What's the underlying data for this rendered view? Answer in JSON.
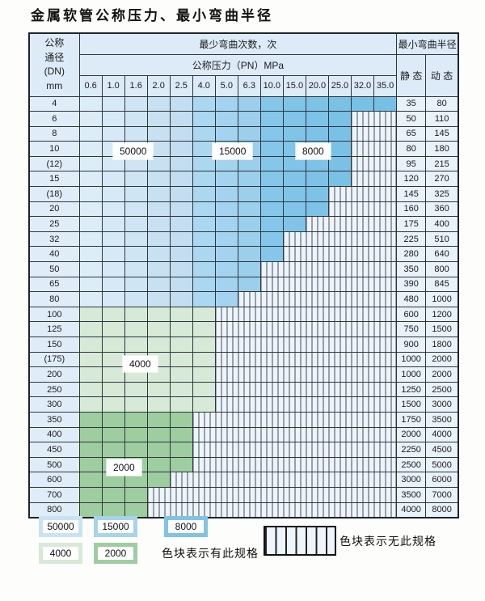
{
  "title": "金属软管公称压力、最小弯曲半径",
  "table": {
    "header": {
      "dn_lines": [
        "公称",
        "通径",
        "(DN)",
        "mm"
      ],
      "bend_cycles_label": "最少弯曲次数，次",
      "pressure_label": "公称压力（PN）MPa",
      "radius_label": "最小弯曲半径",
      "static_label": "静 态",
      "dynamic_label": "动 态",
      "pressure_values": [
        "0.6",
        "1.0",
        "1.6",
        "2.0",
        "2.5",
        "4.0",
        "5.0",
        "6.3",
        "10.0",
        "15.0",
        "20.0",
        "25.0",
        "32.0",
        "35.0"
      ]
    },
    "rows": [
      {
        "dn": "4",
        "colored_cols": 14,
        "max_pn": "35.0",
        "static": "35",
        "dynamic": "80",
        "group": "blue"
      },
      {
        "dn": "6",
        "colored_cols": 12,
        "max_pn": "25.0",
        "static": "50",
        "dynamic": "110",
        "group": "blue"
      },
      {
        "dn": "8",
        "colored_cols": 12,
        "max_pn": "25.0",
        "static": "65",
        "dynamic": "145",
        "group": "blue"
      },
      {
        "dn": "10",
        "colored_cols": 12,
        "max_pn": "25.0",
        "static": "80",
        "dynamic": "180",
        "group": "blue"
      },
      {
        "dn": "(12)",
        "colored_cols": 12,
        "max_pn": "25.0",
        "static": "95",
        "dynamic": "215",
        "group": "blue"
      },
      {
        "dn": "15",
        "colored_cols": 12,
        "max_pn": "25.0",
        "static": "120",
        "dynamic": "270",
        "group": "blue"
      },
      {
        "dn": "(18)",
        "colored_cols": 11,
        "max_pn": "20.0",
        "static": "145",
        "dynamic": "325",
        "group": "blue"
      },
      {
        "dn": "20",
        "colored_cols": 11,
        "max_pn": "20.0",
        "static": "160",
        "dynamic": "360",
        "group": "blue"
      },
      {
        "dn": "25",
        "colored_cols": 10,
        "max_pn": "15.0",
        "static": "175",
        "dynamic": "400",
        "group": "blue"
      },
      {
        "dn": "32",
        "colored_cols": 9,
        "max_pn": "10.0",
        "static": "225",
        "dynamic": "510",
        "group": "blue"
      },
      {
        "dn": "40",
        "colored_cols": 9,
        "max_pn": "10.0",
        "static": "280",
        "dynamic": "640",
        "group": "blue"
      },
      {
        "dn": "50",
        "colored_cols": 8,
        "max_pn": "6.3",
        "static": "350",
        "dynamic": "800",
        "group": "blue"
      },
      {
        "dn": "65",
        "colored_cols": 8,
        "max_pn": "6.3",
        "static": "390",
        "dynamic": "845",
        "group": "blue"
      },
      {
        "dn": "80",
        "colored_cols": 7,
        "max_pn": "5.0",
        "static": "480",
        "dynamic": "1000",
        "group": "blue"
      },
      {
        "dn": "100",
        "colored_cols": 6,
        "max_pn": "4.0",
        "static": "600",
        "dynamic": "1200",
        "group": "green_light"
      },
      {
        "dn": "125",
        "colored_cols": 6,
        "max_pn": "4.0",
        "static": "750",
        "dynamic": "1500",
        "group": "green_light"
      },
      {
        "dn": "150",
        "colored_cols": 6,
        "max_pn": "4.0",
        "static": "900",
        "dynamic": "1800",
        "group": "green_light"
      },
      {
        "dn": "(175)",
        "colored_cols": 6,
        "max_pn": "4.0",
        "static": "1000",
        "dynamic": "2000",
        "group": "green_light"
      },
      {
        "dn": "200",
        "colored_cols": 6,
        "max_pn": "4.0",
        "static": "1000",
        "dynamic": "2000",
        "group": "green_light"
      },
      {
        "dn": "250",
        "colored_cols": 6,
        "max_pn": "4.0",
        "static": "1250",
        "dynamic": "2500",
        "group": "green_light"
      },
      {
        "dn": "300",
        "colored_cols": 6,
        "max_pn": "4.0",
        "static": "1500",
        "dynamic": "3000",
        "group": "green_light"
      },
      {
        "dn": "350",
        "colored_cols": 5,
        "max_pn": "2.5",
        "static": "1750",
        "dynamic": "3500",
        "group": "green_dark"
      },
      {
        "dn": "400",
        "colored_cols": 5,
        "max_pn": "2.5",
        "static": "2000",
        "dynamic": "4000",
        "group": "green_dark"
      },
      {
        "dn": "450",
        "colored_cols": 5,
        "max_pn": "2.5",
        "static": "2250",
        "dynamic": "4500",
        "group": "green_dark"
      },
      {
        "dn": "500",
        "colored_cols": 5,
        "max_pn": "2.5",
        "static": "2500",
        "dynamic": "5000",
        "group": "green_dark"
      },
      {
        "dn": "600",
        "colored_cols": 4,
        "max_pn": "2.0",
        "static": "3000",
        "dynamic": "6000",
        "group": "green_dark"
      },
      {
        "dn": "700",
        "colored_cols": 3,
        "max_pn": "1.6",
        "static": "3500",
        "dynamic": "7000",
        "group": "green_dark"
      },
      {
        "dn": "800",
        "colored_cols": 3,
        "max_pn": "1.6",
        "static": "4000",
        "dynamic": "8000",
        "group": "green_dark"
      }
    ]
  },
  "cell_colors": {
    "blue": [
      "#ddedf8",
      "#d6e9f6",
      "#cfe5f4",
      "#c8e1f2",
      "#c2def0",
      "#abd7f0",
      "#a3d3ee",
      "#9ccfeb",
      "#85c7ea",
      "#80c4e8",
      "#7dc2e7",
      "#7ac1e6",
      "#78c0e6",
      "#76bfe5"
    ],
    "green_light": "#d7e9d7",
    "green_dark": "#9ecd9f"
  },
  "overlay_labels": {
    "cycles_50000": "50000",
    "cycles_15000": "15000",
    "cycles_8000": "8000",
    "cycles_4000": "4000",
    "cycles_2000": "2000"
  },
  "legend": {
    "items": [
      {
        "label": "50000",
        "color": "#c9e2f4"
      },
      {
        "label": "15000",
        "color": "#a5d4ee"
      },
      {
        "label": "8000",
        "color": "#7fc3e7"
      },
      {
        "label": "4000",
        "color": "#d7e9d7"
      },
      {
        "label": "2000",
        "color": "#9ecd9f"
      }
    ],
    "has_spec_text": "色块表示有此规格",
    "no_spec_text": "色块表示无此规格"
  }
}
